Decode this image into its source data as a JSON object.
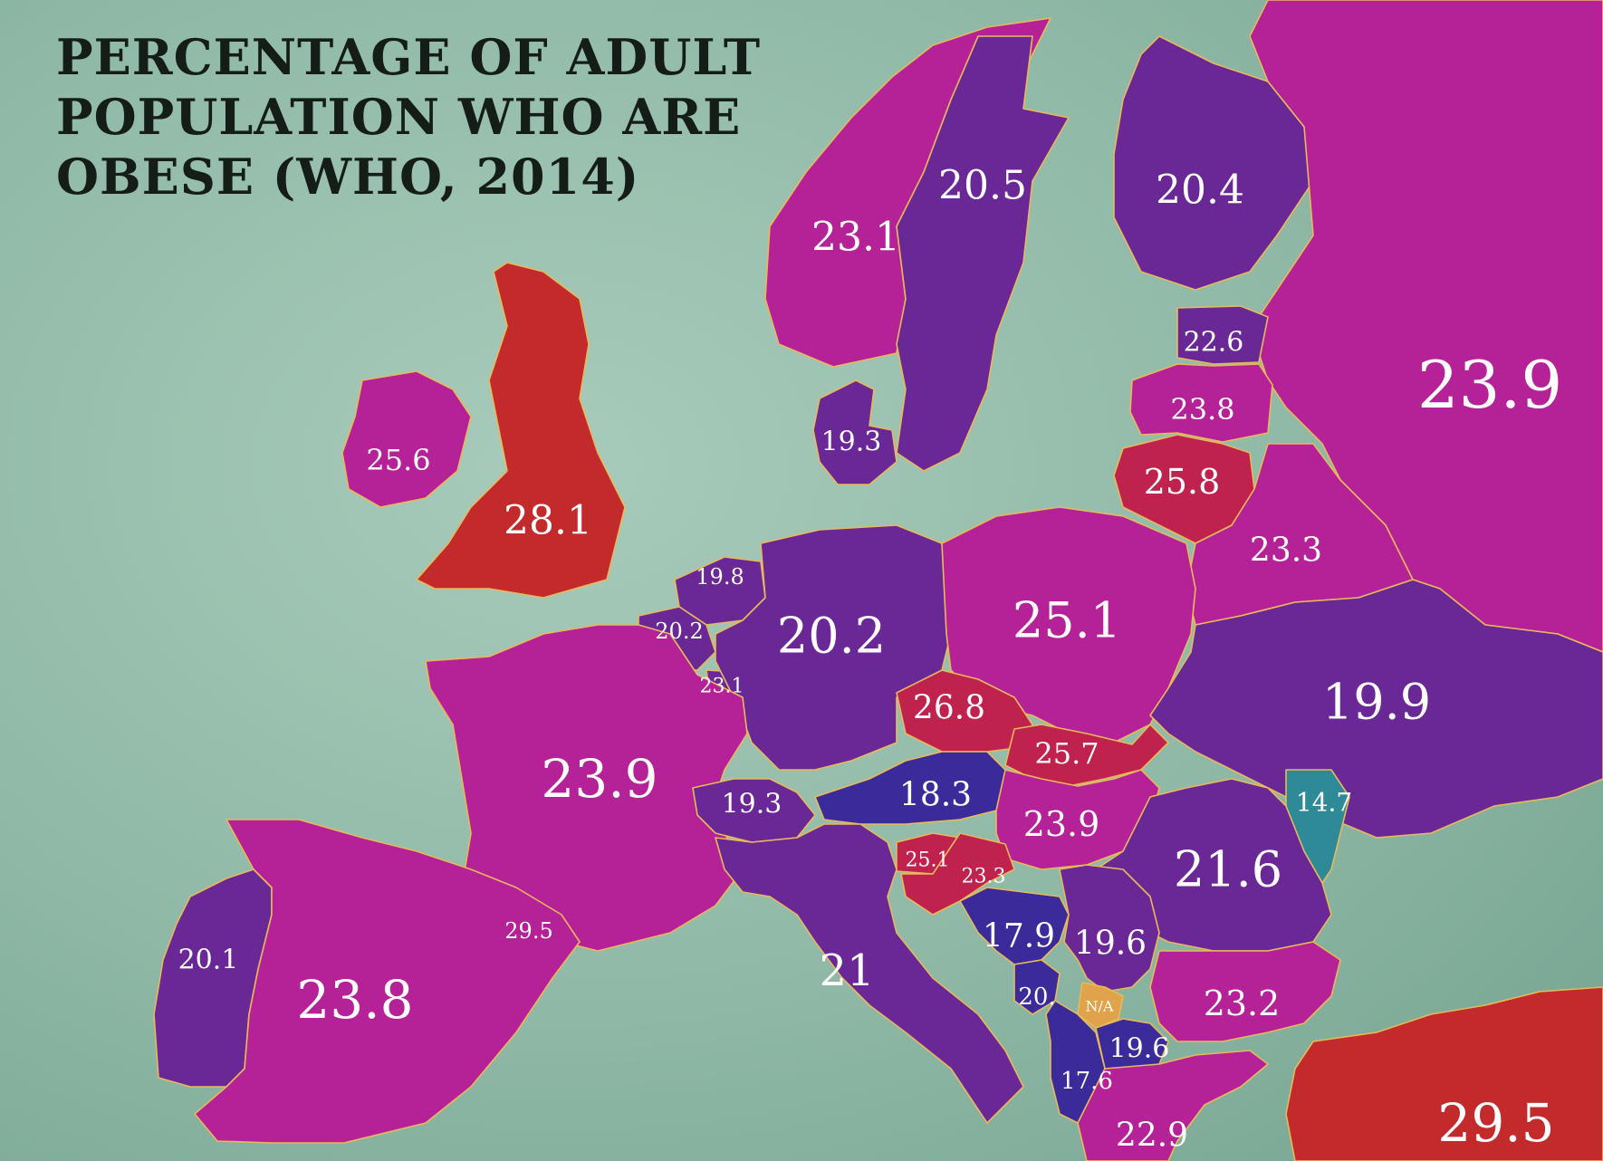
{
  "title": {
    "lines": [
      "PERCENTAGE OF ADULT",
      "POPULATION WHO ARE",
      "OBESE (WHO, 2014)"
    ]
  },
  "colors": {
    "sea": "#8fb8a6",
    "magenta": "#b52196",
    "purple": "#6a2796",
    "indigo": "#3a2a9a",
    "crimson": "#c0224e",
    "red": "#c22a2c",
    "teal": "#2f8a98",
    "na": "#e0a24a",
    "border": "#e8b95a"
  },
  "regions": [
    {
      "id": "united-kingdom",
      "value": "28.1"
    },
    {
      "id": "ireland",
      "value": "25.6"
    },
    {
      "id": "norway",
      "value": "23.1"
    },
    {
      "id": "sweden",
      "value": "20.5"
    },
    {
      "id": "finland",
      "value": "20.4"
    },
    {
      "id": "russia",
      "value": "23.9"
    },
    {
      "id": "estonia",
      "value": "22.6"
    },
    {
      "id": "latvia",
      "value": "23.8"
    },
    {
      "id": "denmark",
      "value": "19.3"
    },
    {
      "id": "lithuania",
      "value": "25.8"
    },
    {
      "id": "belarus",
      "value": "23.3"
    },
    {
      "id": "netherlands",
      "value": "19.8"
    },
    {
      "id": "belgium",
      "value": "20.2"
    },
    {
      "id": "luxembourg",
      "value": "23.1"
    },
    {
      "id": "germany",
      "value": "20.2"
    },
    {
      "id": "poland",
      "value": "25.1"
    },
    {
      "id": "ukraine",
      "value": "19.9"
    },
    {
      "id": "czechia",
      "value": "26.8"
    },
    {
      "id": "slovakia",
      "value": "25.7"
    },
    {
      "id": "france",
      "value": "23.9"
    },
    {
      "id": "switzerland",
      "value": "19.3"
    },
    {
      "id": "austria",
      "value": "18.3"
    },
    {
      "id": "hungary",
      "value": "23.9"
    },
    {
      "id": "moldova",
      "value": "14.7"
    },
    {
      "id": "slovenia",
      "value": "25.1"
    },
    {
      "id": "croatia",
      "value": "23.3"
    },
    {
      "id": "romania",
      "value": "21.6"
    },
    {
      "id": "andorra",
      "value": "29.5"
    },
    {
      "id": "portugal",
      "value": "20.1"
    },
    {
      "id": "spain",
      "value": "23.8"
    },
    {
      "id": "italy",
      "value": "21"
    },
    {
      "id": "bosnia",
      "value": "17.9"
    },
    {
      "id": "serbia",
      "value": "19.6"
    },
    {
      "id": "montenegro",
      "value": "20."
    },
    {
      "id": "kosovo",
      "value": "N/A"
    },
    {
      "id": "north-macedonia",
      "value": "19.6"
    },
    {
      "id": "albania",
      "value": "17.6"
    },
    {
      "id": "bulgaria",
      "value": "23.2"
    },
    {
      "id": "greece",
      "value": "22.9"
    },
    {
      "id": "turkey",
      "value": "29.5"
    }
  ]
}
